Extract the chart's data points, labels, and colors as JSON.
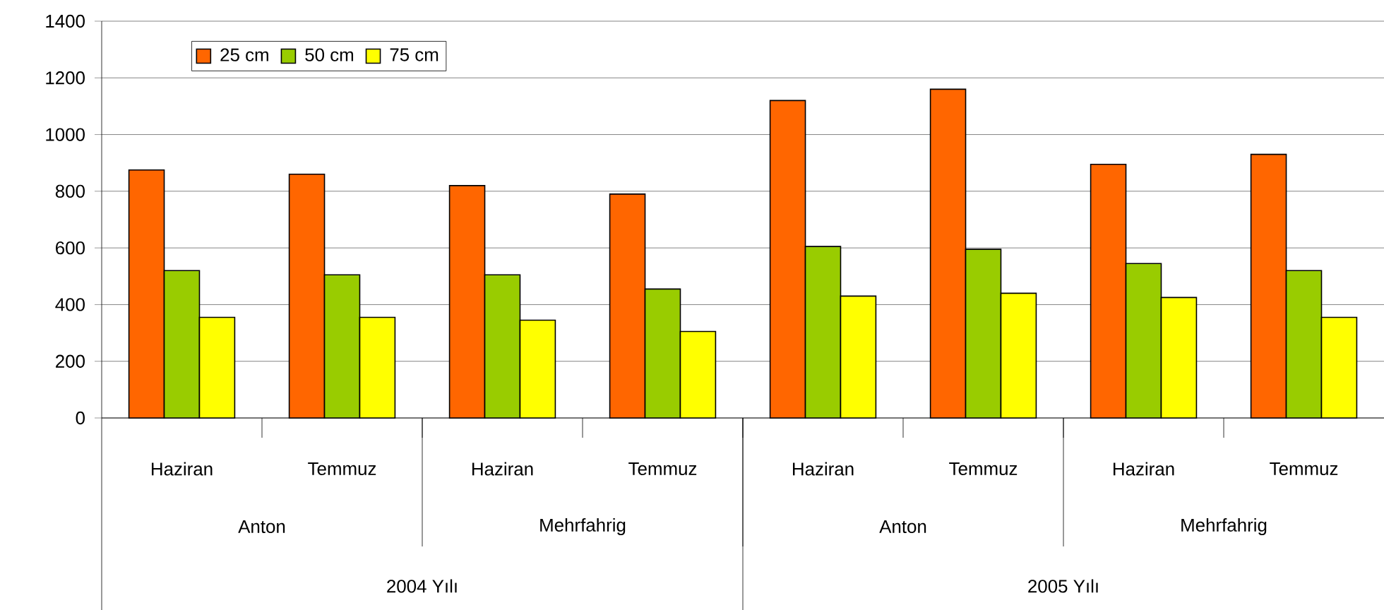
{
  "chart_data": {
    "type": "bar",
    "categories": [
      "Haziran",
      "Temmuz",
      "Haziran",
      "Temmuz",
      "Haziran",
      "Temmuz",
      "Haziran",
      "Temmuz"
    ],
    "series": [
      {
        "name": "25 cm",
        "color": "#ff6600",
        "values": [
          875,
          860,
          820,
          790,
          1120,
          1160,
          895,
          930
        ]
      },
      {
        "name": "50 cm",
        "color": "#99cc00",
        "values": [
          520,
          505,
          505,
          455,
          605,
          595,
          545,
          520
        ]
      },
      {
        "name": "75 cm",
        "color": "#ffff00",
        "values": [
          355,
          355,
          345,
          305,
          430,
          440,
          425,
          355
        ]
      }
    ],
    "ylim": [
      0,
      1400
    ],
    "yticks": [
      0,
      200,
      400,
      600,
      800,
      1000,
      1200,
      1400
    ],
    "grid": "y",
    "legend": "top left",
    "annotations": [
      "Anton",
      "Mehrfahrig",
      "Anton",
      "Mehrfahrig",
      "2004 Yılı",
      "2005 Yılı"
    ]
  }
}
